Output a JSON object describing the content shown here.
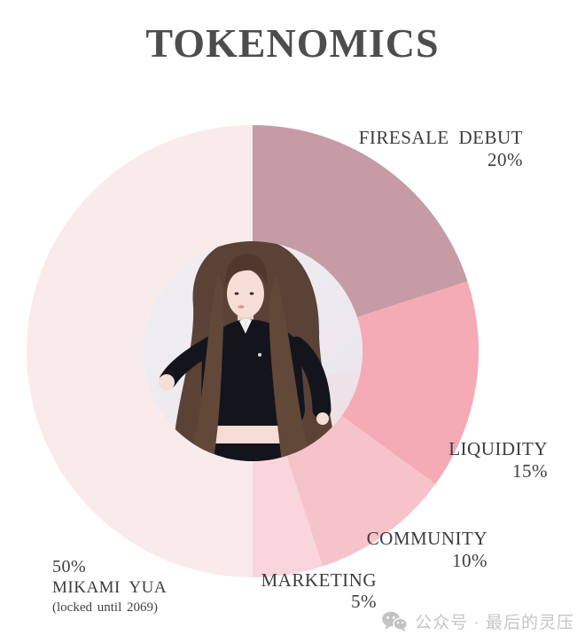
{
  "title": "TOKENOMICS",
  "chart_data": {
    "type": "pie",
    "style": "donut",
    "title": "TOKENOMICS",
    "rotation": "first slice starts at 12 o'clock, clockwise",
    "slices": [
      {
        "label": "FIRESALE DEBUT",
        "value": 20,
        "pct": "20%",
        "color": "#c69ba6"
      },
      {
        "label": "LIQUIDITY",
        "value": 15,
        "pct": "15%",
        "color": "#f4abb6"
      },
      {
        "label": "COMMUNITY",
        "value": 10,
        "pct": "10%",
        "color": "#f7c3cb"
      },
      {
        "label": "MARKETING",
        "value": 5,
        "pct": "5%",
        "color": "#fad5dc"
      },
      {
        "label": "MIKAMI YUA",
        "value": 50,
        "pct": "50%",
        "color": "#f9ebe9",
        "note": "(locked until 2069)"
      }
    ],
    "center_image": "photo-of-mikami-yua",
    "legend_position": "around-chart",
    "grid": false
  },
  "watermark": {
    "icon": "wechat-icon",
    "text": "公众号 · 最后的灵压",
    "color": "#c6c6c6"
  }
}
